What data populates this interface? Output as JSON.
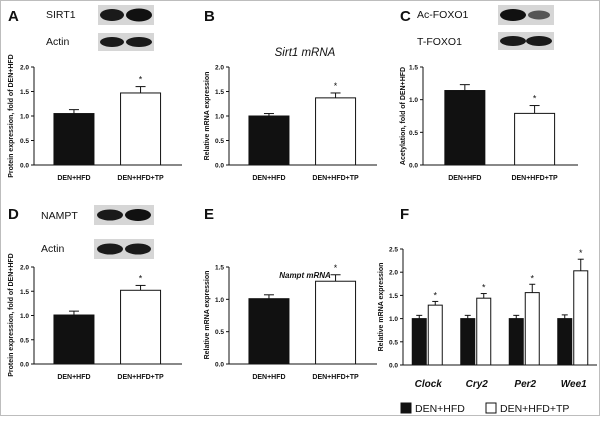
{
  "panels": {
    "A": {
      "letter": "A"
    },
    "B": {
      "letter": "B"
    },
    "C": {
      "letter": "C"
    },
    "D": {
      "letter": "D"
    },
    "E": {
      "letter": "E"
    },
    "F": {
      "letter": "F"
    }
  },
  "blots": {
    "A": {
      "rows": [
        "SIRT1",
        "Actin"
      ]
    },
    "C": {
      "rows": [
        "Ac-FOXO1",
        "T-FOXO1"
      ]
    },
    "D": {
      "rows": [
        "NAMPT",
        "Actin"
      ]
    }
  },
  "legend": {
    "items": [
      "DEN+HFD",
      "DEN+HFD+TP"
    ],
    "colors": [
      "#111111",
      "#ffffff"
    ]
  },
  "chart_data": [
    {
      "id": "A",
      "type": "bar",
      "title": "",
      "ylabel": "Protein expression, fold of DEN+HFD",
      "xlabel": "",
      "categories": [
        "DEN+HFD",
        "DEN+HFD+TP"
      ],
      "values": [
        1.05,
        1.47
      ],
      "errors": [
        0.08,
        0.13
      ],
      "significance": [
        "",
        "*"
      ],
      "ylim": [
        0,
        2.0
      ],
      "yticks": [
        "0.0",
        "0.5",
        "1.0",
        "1.5",
        "2.0"
      ],
      "colors": [
        "#111111",
        "#ffffff"
      ]
    },
    {
      "id": "B",
      "type": "bar",
      "title": "Sirt1 mRNA",
      "ylabel": "Relative mRNA expression",
      "xlabel": "",
      "categories": [
        "DEN+HFD",
        "DEN+HFD+TP"
      ],
      "values": [
        1.0,
        1.37
      ],
      "errors": [
        0.05,
        0.1
      ],
      "significance": [
        "",
        "*"
      ],
      "ylim": [
        0,
        2.0
      ],
      "yticks": [
        "0.0",
        "0.5",
        "1.0",
        "1.5",
        "2.0"
      ],
      "colors": [
        "#111111",
        "#ffffff"
      ]
    },
    {
      "id": "C",
      "type": "bar",
      "title": "",
      "ylabel": "Acetylation, fold of DEN+HFD",
      "xlabel": "",
      "categories": [
        "DEN+HFD",
        "DEN+HFD+TP"
      ],
      "values": [
        1.14,
        0.79
      ],
      "errors": [
        0.09,
        0.12
      ],
      "significance": [
        "",
        "*"
      ],
      "ylim": [
        0,
        1.5
      ],
      "yticks": [
        "0.0",
        "0.5",
        "1.0",
        "1.5"
      ],
      "colors": [
        "#111111",
        "#ffffff"
      ]
    },
    {
      "id": "D",
      "type": "bar",
      "title": "",
      "ylabel": "Protein expression, fold of DEN+HFD",
      "xlabel": "",
      "categories": [
        "DEN+HFD",
        "DEN+HFD+TP"
      ],
      "values": [
        1.01,
        1.52
      ],
      "errors": [
        0.08,
        0.1
      ],
      "significance": [
        "",
        "*"
      ],
      "ylim": [
        0,
        2.0
      ],
      "yticks": [
        "0.0",
        "0.5",
        "1.0",
        "1.5",
        "2.0"
      ],
      "colors": [
        "#111111",
        "#ffffff"
      ]
    },
    {
      "id": "E",
      "type": "bar",
      "title": "Nampt mRNA",
      "ylabel": "Relative mRNA expression",
      "xlabel": "",
      "categories": [
        "DEN+HFD",
        "DEN+HFD+TP"
      ],
      "values": [
        1.01,
        1.28
      ],
      "errors": [
        0.06,
        0.1
      ],
      "significance": [
        "",
        "*"
      ],
      "ylim": [
        0,
        1.5
      ],
      "yticks": [
        "0.0",
        "0.5",
        "1.0",
        "1.5"
      ],
      "colors": [
        "#111111",
        "#ffffff"
      ]
    },
    {
      "id": "F",
      "type": "bar",
      "title": "",
      "ylabel": "Relative mRNA expression",
      "xlabel": "",
      "categories": [
        "Clock",
        "Cry2",
        "Per2",
        "Wee1"
      ],
      "series": [
        {
          "name": "DEN+HFD",
          "values": [
            1.0,
            1.0,
            1.0,
            1.0
          ],
          "errors": [
            0.07,
            0.07,
            0.07,
            0.08
          ],
          "color": "#111111"
        },
        {
          "name": "DEN+HFD+TP",
          "values": [
            1.29,
            1.44,
            1.56,
            2.03
          ],
          "errors": [
            0.08,
            0.1,
            0.18,
            0.25
          ],
          "color": "#ffffff"
        }
      ],
      "significance": [
        "*",
        "*",
        "*",
        "*"
      ],
      "ylim": [
        0,
        2.5
      ],
      "yticks": [
        "0.0",
        "0.5",
        "1.0",
        "1.5",
        "2.0",
        "2.5"
      ],
      "legend": "bottom"
    }
  ]
}
